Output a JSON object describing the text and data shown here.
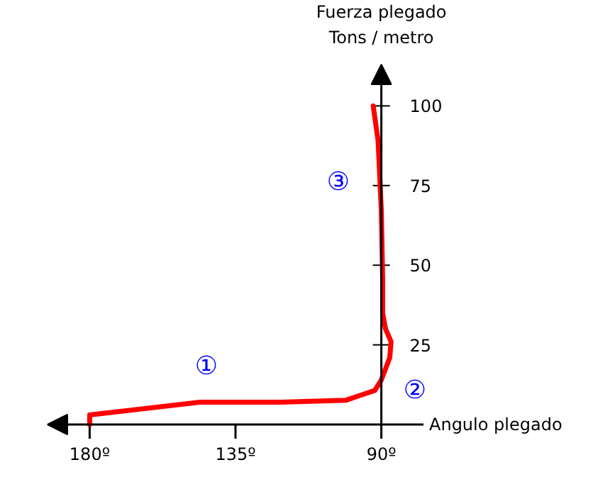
{
  "chart_data": {
    "type": "line",
    "xlabel": "Angulo  plegado",
    "ylabel": "Fuerza plegado\nTons / metro",
    "x": [
      180,
      180,
      146,
      121,
      101,
      92,
      90,
      87.4,
      87,
      88.7,
      89.6,
      89.6,
      90,
      91,
      92.5
    ],
    "series": [
      {
        "color": "#ff0000",
        "values": [
          0,
          3,
          7,
          7,
          7.6,
          10.7,
          14,
          21,
          26,
          30,
          35,
          46,
          67,
          89,
          100
        ]
      }
    ],
    "xlim": [
      193,
      77
    ],
    "ylim": [
      0,
      113
    ],
    "xticks": [
      {
        "value": 180,
        "label": "180º"
      },
      {
        "value": 135,
        "label": "135º"
      },
      {
        "value": 90,
        "label": "90º"
      }
    ],
    "yticks": [
      25,
      50,
      75,
      100
    ],
    "annotations": [
      "①",
      "②",
      "③"
    ],
    "grid": false,
    "marker": "none",
    "line_style": "solid"
  }
}
